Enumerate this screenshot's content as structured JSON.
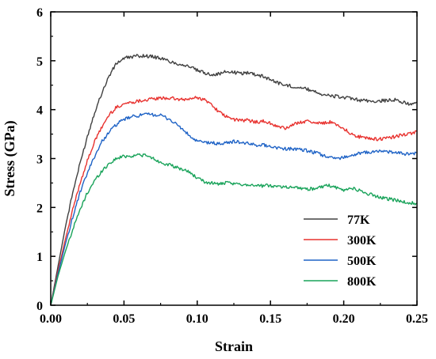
{
  "chart_data": {
    "type": "line",
    "xlabel": "Strain",
    "ylabel": "Stress (GPa)",
    "xlim": [
      0,
      0.25
    ],
    "ylim": [
      0,
      6
    ],
    "xticks": [
      0.0,
      0.05,
      0.1,
      0.15,
      0.2,
      0.25
    ],
    "xtick_labels": [
      "0.00",
      "0.05",
      "0.10",
      "0.15",
      "0.20",
      "0.25"
    ],
    "yticks": [
      0,
      1,
      2,
      3,
      4,
      5,
      6
    ],
    "ytick_labels": [
      "0",
      "1",
      "2",
      "3",
      "4",
      "5",
      "6"
    ],
    "grid": false,
    "legend_position": "lower-right",
    "series": [
      {
        "name": "77K",
        "color": "#404040",
        "x": [
          0,
          0.005,
          0.01,
          0.015,
          0.02,
          0.025,
          0.03,
          0.035,
          0.04,
          0.045,
          0.05,
          0.055,
          0.06,
          0.065,
          0.07,
          0.075,
          0.08,
          0.085,
          0.09,
          0.095,
          0.1,
          0.105,
          0.11,
          0.115,
          0.12,
          0.125,
          0.13,
          0.135,
          0.14,
          0.145,
          0.15,
          0.155,
          0.16,
          0.165,
          0.17,
          0.175,
          0.18,
          0.185,
          0.19,
          0.195,
          0.2,
          0.205,
          0.21,
          0.215,
          0.22,
          0.225,
          0.23,
          0.235,
          0.24,
          0.245,
          0.25
        ],
        "y": [
          0,
          0.8,
          1.6,
          2.3,
          2.9,
          3.45,
          3.95,
          4.35,
          4.7,
          4.95,
          5.05,
          5.08,
          5.1,
          5.1,
          5.08,
          5.05,
          5.0,
          4.95,
          4.92,
          4.88,
          4.8,
          4.75,
          4.72,
          4.73,
          4.78,
          4.76,
          4.74,
          4.76,
          4.72,
          4.68,
          4.62,
          4.55,
          4.5,
          4.48,
          4.45,
          4.42,
          4.38,
          4.32,
          4.28,
          4.27,
          4.25,
          4.22,
          4.2,
          4.18,
          4.17,
          4.18,
          4.19,
          4.2,
          4.15,
          4.12,
          4.15
        ]
      },
      {
        "name": "300K",
        "color": "#e8322f",
        "x": [
          0,
          0.005,
          0.01,
          0.015,
          0.02,
          0.025,
          0.03,
          0.035,
          0.04,
          0.045,
          0.05,
          0.055,
          0.06,
          0.065,
          0.07,
          0.075,
          0.08,
          0.085,
          0.09,
          0.095,
          0.1,
          0.105,
          0.11,
          0.115,
          0.12,
          0.125,
          0.13,
          0.135,
          0.14,
          0.145,
          0.15,
          0.155,
          0.16,
          0.165,
          0.17,
          0.175,
          0.18,
          0.185,
          0.19,
          0.195,
          0.2,
          0.205,
          0.21,
          0.215,
          0.22,
          0.225,
          0.23,
          0.235,
          0.24,
          0.245,
          0.25
        ],
        "y": [
          0,
          0.7,
          1.35,
          1.95,
          2.5,
          2.95,
          3.35,
          3.65,
          3.9,
          4.05,
          4.12,
          4.15,
          4.18,
          4.2,
          4.22,
          4.23,
          4.24,
          4.22,
          4.2,
          4.22,
          4.25,
          4.2,
          4.1,
          3.95,
          3.85,
          3.8,
          3.78,
          3.78,
          3.75,
          3.76,
          3.72,
          3.65,
          3.62,
          3.68,
          3.75,
          3.76,
          3.74,
          3.72,
          3.75,
          3.7,
          3.62,
          3.5,
          3.45,
          3.42,
          3.4,
          3.4,
          3.42,
          3.45,
          3.48,
          3.5,
          3.55
        ]
      },
      {
        "name": "500K",
        "color": "#1f63c6",
        "x": [
          0,
          0.005,
          0.01,
          0.015,
          0.02,
          0.025,
          0.03,
          0.035,
          0.04,
          0.045,
          0.05,
          0.055,
          0.06,
          0.065,
          0.07,
          0.075,
          0.08,
          0.085,
          0.09,
          0.095,
          0.1,
          0.105,
          0.11,
          0.115,
          0.12,
          0.125,
          0.13,
          0.135,
          0.14,
          0.145,
          0.15,
          0.155,
          0.16,
          0.165,
          0.17,
          0.175,
          0.18,
          0.185,
          0.19,
          0.195,
          0.2,
          0.205,
          0.21,
          0.215,
          0.22,
          0.225,
          0.23,
          0.235,
          0.24,
          0.245,
          0.25
        ],
        "y": [
          0,
          0.65,
          1.25,
          1.8,
          2.3,
          2.7,
          3.05,
          3.35,
          3.55,
          3.7,
          3.8,
          3.85,
          3.88,
          3.9,
          3.9,
          3.88,
          3.82,
          3.72,
          3.6,
          3.45,
          3.35,
          3.33,
          3.32,
          3.3,
          3.32,
          3.35,
          3.33,
          3.3,
          3.28,
          3.28,
          3.25,
          3.22,
          3.2,
          3.2,
          3.18,
          3.16,
          3.12,
          3.08,
          3.02,
          3.0,
          3.03,
          3.06,
          3.1,
          3.12,
          3.14,
          3.15,
          3.14,
          3.12,
          3.1,
          3.1,
          3.12
        ]
      },
      {
        "name": "800K",
        "color": "#19a35a",
        "x": [
          0,
          0.005,
          0.01,
          0.015,
          0.02,
          0.025,
          0.03,
          0.035,
          0.04,
          0.045,
          0.05,
          0.055,
          0.06,
          0.065,
          0.07,
          0.075,
          0.08,
          0.085,
          0.09,
          0.095,
          0.1,
          0.105,
          0.11,
          0.115,
          0.12,
          0.125,
          0.13,
          0.135,
          0.14,
          0.145,
          0.15,
          0.155,
          0.16,
          0.165,
          0.17,
          0.175,
          0.18,
          0.185,
          0.19,
          0.195,
          0.2,
          0.205,
          0.21,
          0.215,
          0.22,
          0.225,
          0.23,
          0.235,
          0.24,
          0.245,
          0.25
        ],
        "y": [
          0,
          0.6,
          1.1,
          1.55,
          1.95,
          2.3,
          2.55,
          2.75,
          2.9,
          3.0,
          3.05,
          3.05,
          3.08,
          3.06,
          3.0,
          2.92,
          2.88,
          2.82,
          2.78,
          2.72,
          2.6,
          2.52,
          2.5,
          2.48,
          2.5,
          2.48,
          2.47,
          2.47,
          2.45,
          2.44,
          2.45,
          2.43,
          2.42,
          2.42,
          2.4,
          2.38,
          2.38,
          2.42,
          2.45,
          2.4,
          2.35,
          2.4,
          2.35,
          2.3,
          2.25,
          2.2,
          2.18,
          2.15,
          2.12,
          2.1,
          2.08
        ]
      }
    ]
  }
}
